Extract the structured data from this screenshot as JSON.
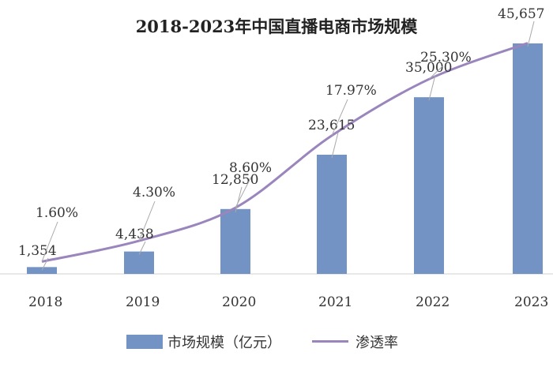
{
  "chart_data": {
    "type": "bar",
    "title": "2018-2023年中国直播电商市场规模",
    "categories": [
      "2018",
      "2019",
      "2020",
      "2021",
      "2022",
      "2023"
    ],
    "series": [
      {
        "name": "市场规模（亿元）",
        "type": "bar",
        "color": "#7293c4",
        "values": [
          1354,
          4438,
          12850,
          23615,
          35000,
          45657
        ],
        "labels": [
          "1,354",
          "4,438",
          "12,850",
          "23,615",
          "35,000",
          "45,657"
        ]
      },
      {
        "name": "渗透率",
        "type": "line",
        "color": "#9a85bd",
        "values": [
          1.6,
          4.3,
          8.6,
          17.97,
          25.3,
          30
        ],
        "labels": [
          "1.60%",
          "4.30%",
          "8.60%",
          "17.97%",
          "25.30%",
          ""
        ]
      }
    ],
    "xlabel": "",
    "ylabel": "",
    "ylim": [
      0,
      46000
    ],
    "grid": false,
    "legend": "bottom"
  }
}
